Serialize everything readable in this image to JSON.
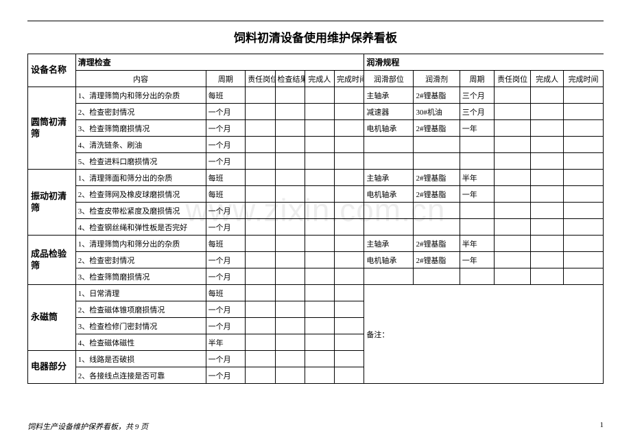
{
  "title": "饲料初清设备使用维护保养看板",
  "watermark": "www.zixin.com.cn",
  "footer_text": "饲料生产设备维护保养看板，共 9 页",
  "page_number": "1",
  "header": {
    "device_name_label": "设备名称",
    "clean_label": "清理检查",
    "lube_label": "润滑规程",
    "clean_cols": [
      "内容",
      "周期",
      "责任岗位",
      "检查结果",
      "完成人",
      "完成时间"
    ],
    "lube_cols": [
      "润滑部位",
      "润滑剂",
      "周期",
      "责任岗位",
      "完成人",
      "完成时间"
    ]
  },
  "remarks_label": "备注：",
  "devices": [
    {
      "name": "圆筒初清筛",
      "clean": [
        {
          "c": "1、清理筛筒内和筛分出的杂质",
          "p": "每班"
        },
        {
          "c": "2、检查密封情况",
          "p": "一个月"
        },
        {
          "c": "3、检查筛筒磨损情况",
          "p": "一个月"
        },
        {
          "c": "4、清洗链条、刷油",
          "p": "一个月"
        },
        {
          "c": "5、检查进料口磨损情况",
          "p": "一个月"
        }
      ],
      "lube": [
        {
          "a": "主轴承",
          "b": "2#锂基脂",
          "c": "三个月"
        },
        {
          "a": "减速器",
          "b": "30#机油",
          "c": "三个月"
        },
        {
          "a": "电机轴承",
          "b": "2#锂基脂",
          "c": "一年"
        },
        {
          "a": "",
          "b": "",
          "c": ""
        },
        {
          "a": "",
          "b": "",
          "c": ""
        }
      ]
    },
    {
      "name": "振动初清筛",
      "clean": [
        {
          "c": "1、清理筛面和筛分出的杂质",
          "p": "每班"
        },
        {
          "c": "2、检查筛网及橡皮球磨损情况",
          "p": "每班"
        },
        {
          "c": "3、检查皮带松紧度及磨损情况",
          "p": "一个月"
        },
        {
          "c": "4、检查钢丝绳和弹性板是否完好",
          "p": "一个月"
        }
      ],
      "lube": [
        {
          "a": "主轴承",
          "b": "2#锂基脂",
          "c": "半年"
        },
        {
          "a": "电机轴承",
          "b": "2#锂基脂",
          "c": "一年"
        },
        {
          "a": "",
          "b": "",
          "c": ""
        },
        {
          "a": "",
          "b": "",
          "c": ""
        }
      ]
    },
    {
      "name": "成品检验筛",
      "clean": [
        {
          "c": "1、清理筛筒内和筛分出的杂质",
          "p": "每班"
        },
        {
          "c": "2、检查密封情况",
          "p": "一个月"
        },
        {
          "c": "3、检查筛筒磨损情况",
          "p": "一个月"
        }
      ],
      "lube": [
        {
          "a": "主轴承",
          "b": "2#锂基脂",
          "c": "半年"
        },
        {
          "a": "电机轴承",
          "b": "2#锂基脂",
          "c": "一年"
        },
        {
          "a": "",
          "b": "",
          "c": ""
        }
      ]
    },
    {
      "name": "永磁筒",
      "clean": [
        {
          "c": "1、日常清理",
          "p": "每班"
        },
        {
          "c": "2、检查磁体锥项磨损情况",
          "p": "一个月"
        },
        {
          "c": "3、检查检修门密封情况",
          "p": "一个月"
        },
        {
          "c": "4、检查磁体磁性",
          "p": "半年"
        }
      ],
      "remarks": true
    },
    {
      "name": "电器部分",
      "clean": [
        {
          "c": "1、线路是否破损",
          "p": "一个月"
        },
        {
          "c": "2、各接线点连接是否可靠",
          "p": "一个月"
        }
      ]
    }
  ],
  "colwidths": {
    "device": 58,
    "content": 158,
    "period": 48,
    "small": 36,
    "lube_a": 60,
    "lube_b": 56,
    "lube_c": 42,
    "lube_small": 44
  }
}
